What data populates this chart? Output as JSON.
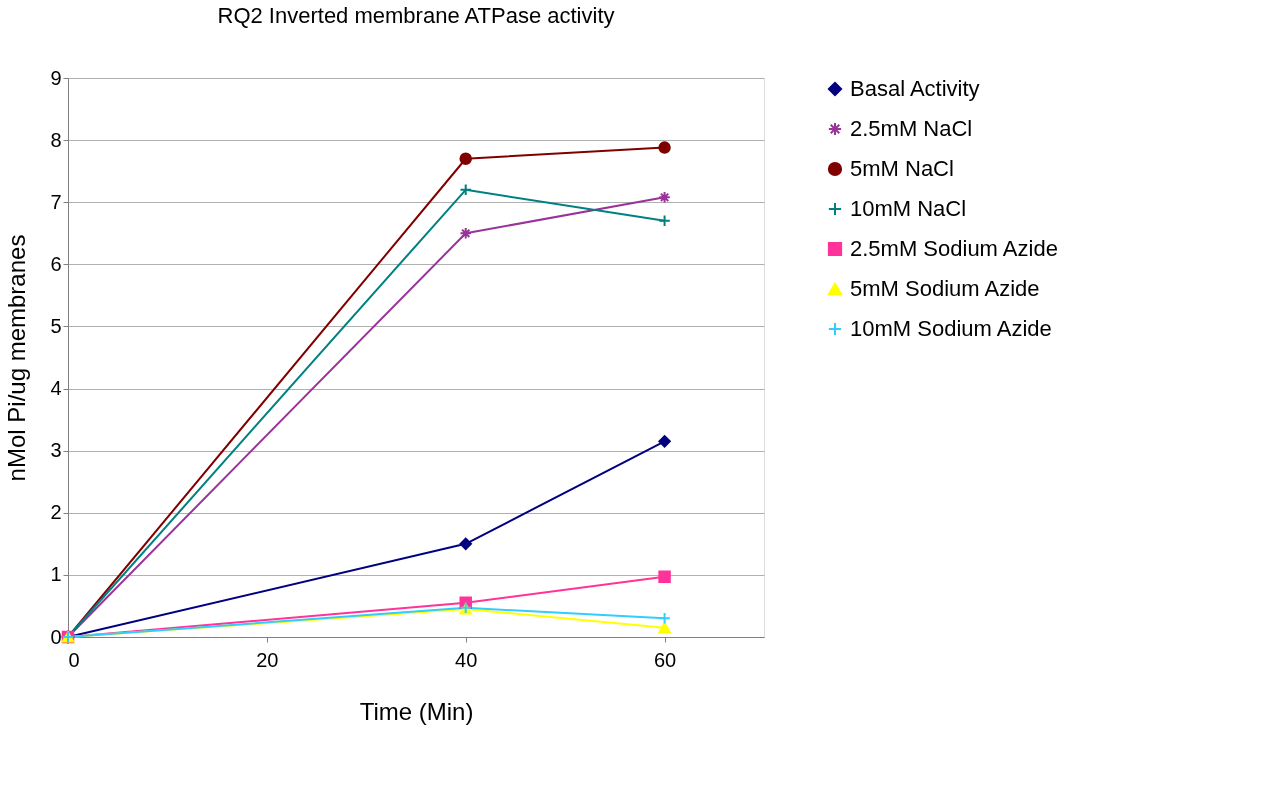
{
  "chart_data": {
    "type": "line",
    "title": "RQ2 Inverted membrane ATPase activity",
    "xlabel": "Time (Min)",
    "ylabel": "nMol Pi/ug membranes",
    "x": [
      0,
      40,
      60
    ],
    "xlim": [
      0,
      70
    ],
    "xticks": [
      0,
      20,
      40,
      60
    ],
    "ylim": [
      0,
      9
    ],
    "yticks": [
      0,
      1,
      2,
      3,
      4,
      5,
      6,
      7,
      8,
      9
    ],
    "grid": "y",
    "legend": "right",
    "series": [
      {
        "name": "Basal Activity",
        "color": "#000080",
        "marker": "diamond",
        "values": [
          0,
          1.5,
          3.15
        ]
      },
      {
        "name": "2.5mM NaCl",
        "color": "#993399",
        "marker": "cross",
        "values": [
          0,
          6.5,
          7.08
        ]
      },
      {
        "name": "5mM NaCl",
        "color": "#800000",
        "marker": "circle",
        "values": [
          0,
          7.7,
          7.88
        ]
      },
      {
        "name": "10mM NaCl",
        "color": "#008080",
        "marker": "cross",
        "values": [
          0,
          7.2,
          6.7
        ]
      },
      {
        "name": "2.5mM Sodium Azide",
        "color": "#ff3399",
        "marker": "square",
        "values": [
          0,
          0.55,
          0.97
        ]
      },
      {
        "name": "5mM Sodium Azide",
        "color": "#ffff00",
        "marker": "triangle",
        "values": [
          0,
          0.45,
          0.15
        ]
      },
      {
        "name": "10mM Sodium Azide",
        "color": "#33ccff",
        "marker": "cross",
        "values": [
          0,
          0.47,
          0.3
        ]
      }
    ]
  }
}
